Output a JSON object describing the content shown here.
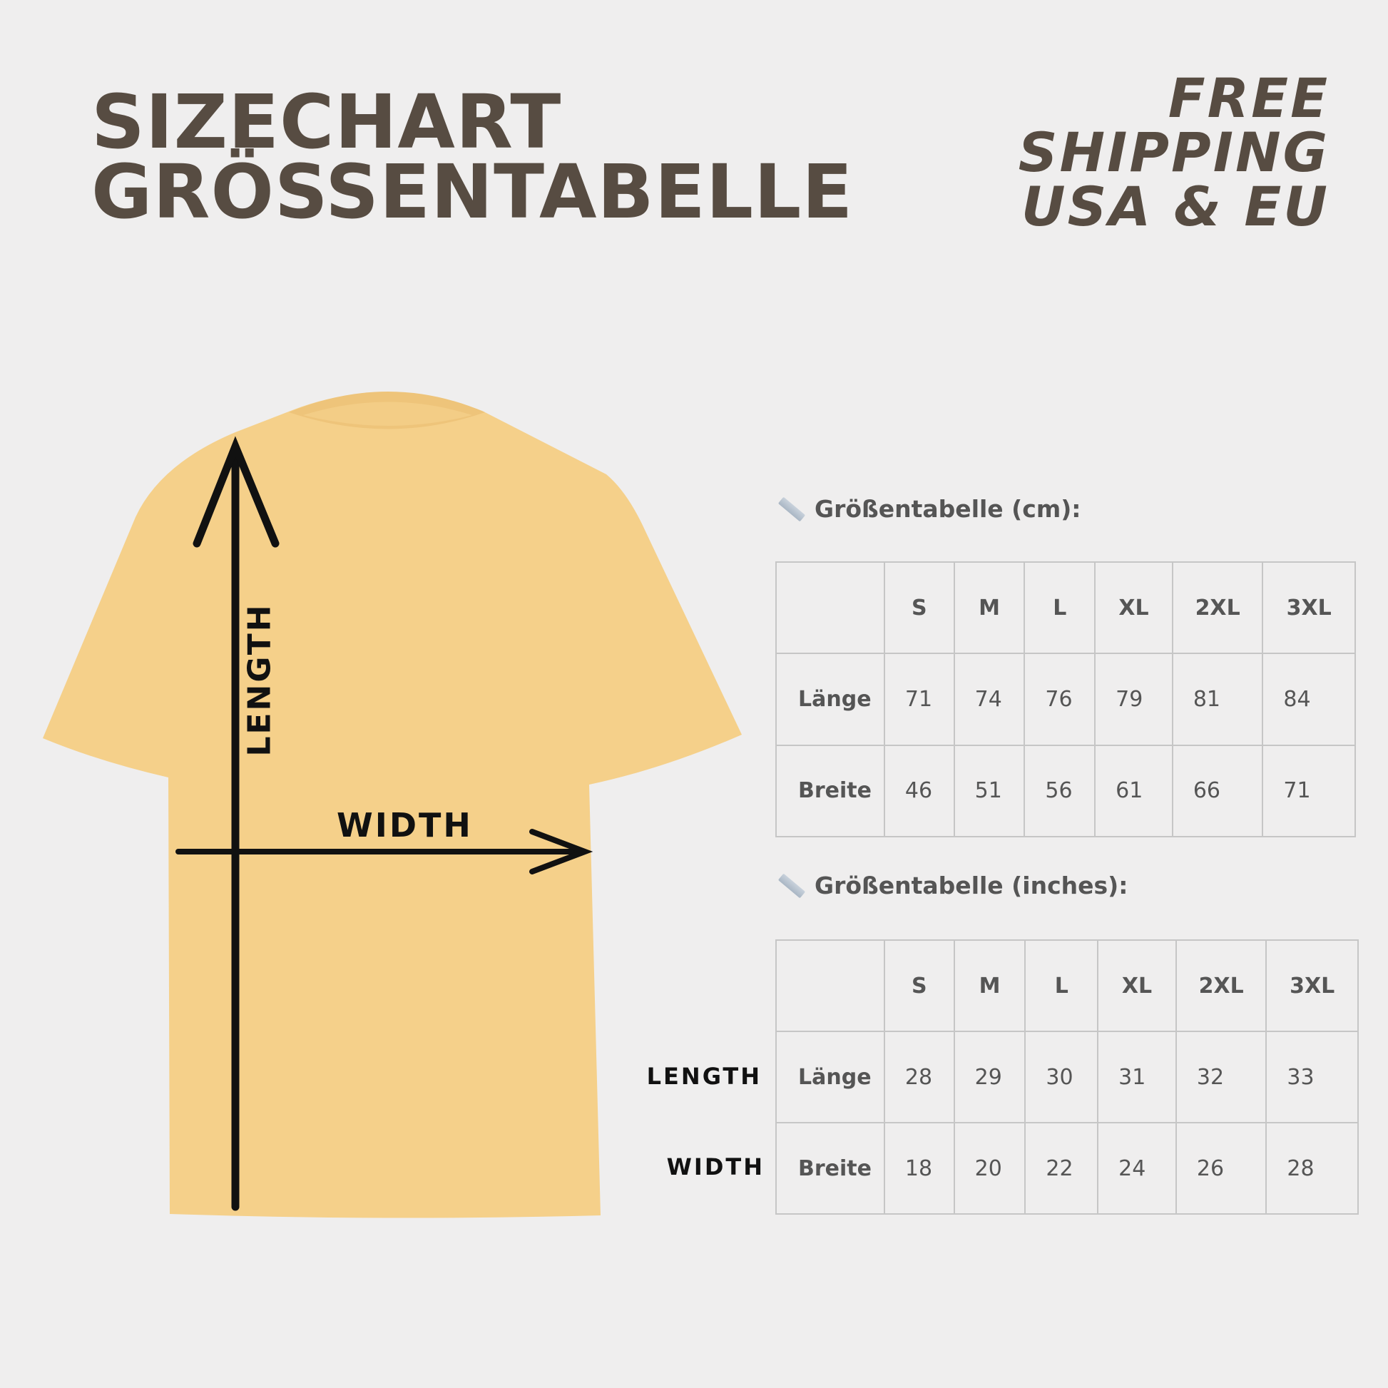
{
  "header": {
    "title_line1": "SIZECHART",
    "title_line2": "GRÖSSENTABELLE"
  },
  "promo": {
    "line1": "FREE",
    "line2": "SHIPPING",
    "line3": "USA & EU"
  },
  "diagram": {
    "length_label": "LENGTH",
    "width_label": "WIDTH",
    "shirt_color": "#f5d08a"
  },
  "table_cm": {
    "title": "Größentabelle (cm):",
    "icon": "ruler-icon",
    "sizes": [
      "S",
      "M",
      "L",
      "XL",
      "2XL",
      "3XL"
    ],
    "rows": [
      {
        "label": "Länge",
        "values": [
          "71",
          "74",
          "76",
          "79",
          "81",
          "84"
        ]
      },
      {
        "label": "Breite",
        "values": [
          "46",
          "51",
          "56",
          "61",
          "66",
          "71"
        ]
      }
    ]
  },
  "table_in": {
    "title": "Größentabelle (inches):",
    "icon": "ruler-icon",
    "sizes": [
      "S",
      "M",
      "L",
      "XL",
      "2XL",
      "3XL"
    ],
    "rows": [
      {
        "label": "Länge",
        "side_label": "LENGTH",
        "values": [
          "28",
          "29",
          "30",
          "31",
          "32",
          "33"
        ]
      },
      {
        "label": "Breite",
        "side_label": "WIDTH",
        "values": [
          "18",
          "20",
          "22",
          "24",
          "26",
          "28"
        ]
      }
    ]
  }
}
